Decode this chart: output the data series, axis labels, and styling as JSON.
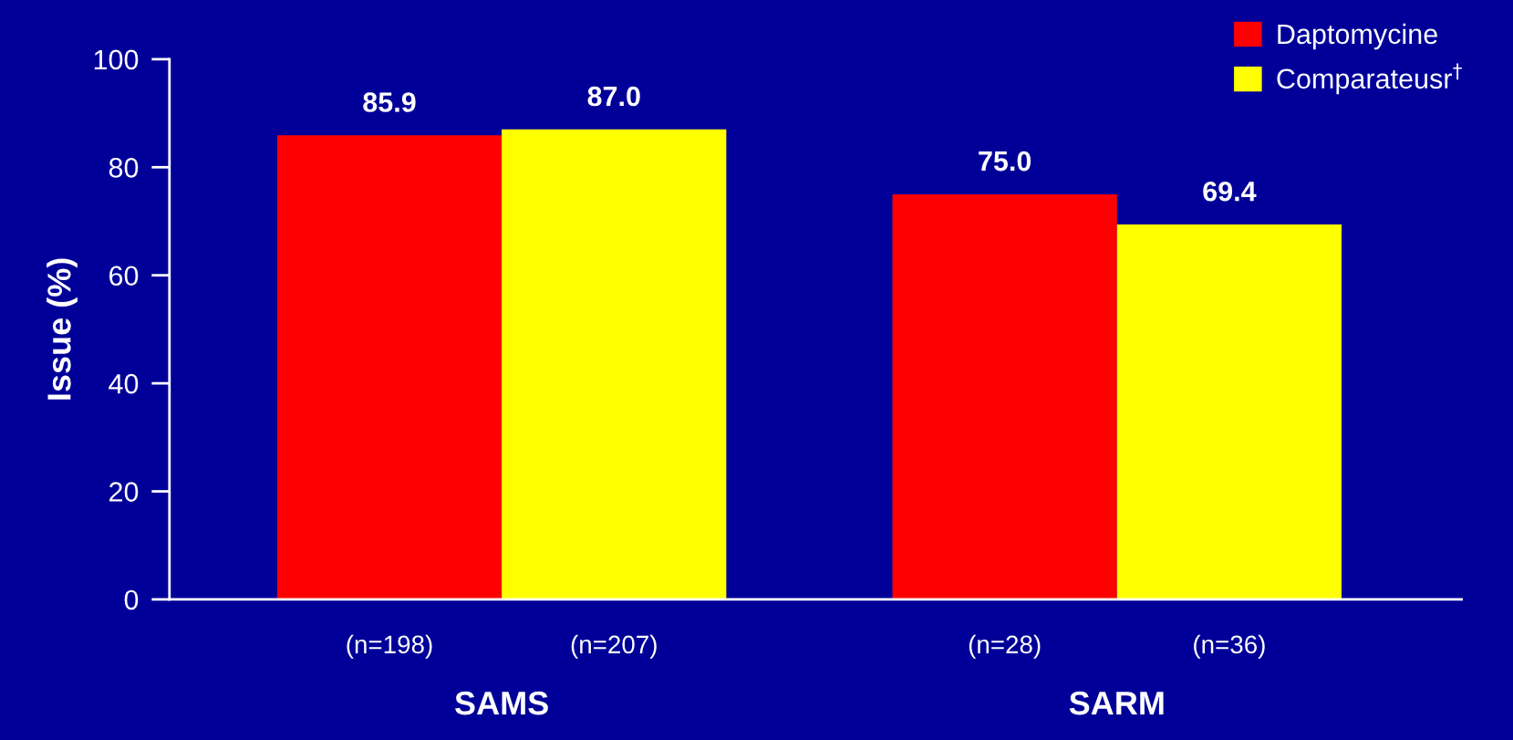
{
  "chart_data": {
    "type": "bar",
    "ylabel": "Issue (%)",
    "categories": [
      "SAMS",
      "SARM"
    ],
    "series": [
      {
        "name": "Daptomycine",
        "color": "#ff0000",
        "values": [
          85.9,
          75.0
        ],
        "value_labels": [
          "85.9",
          "75.0"
        ]
      },
      {
        "name": "Comparateusr$^{†}$",
        "color": "#ffff00",
        "values": [
          87.0,
          69.4
        ],
        "value_labels": [
          "87.0",
          "69.4"
        ]
      }
    ],
    "annotations": [
      "(n=198)",
      "(n=207)",
      "(n=28)",
      "(n=36)"
    ],
    "ylim": [
      0,
      100
    ],
    "yticks": [
      0,
      20,
      40,
      60,
      80,
      100
    ],
    "grid": false,
    "legend": "top right"
  }
}
